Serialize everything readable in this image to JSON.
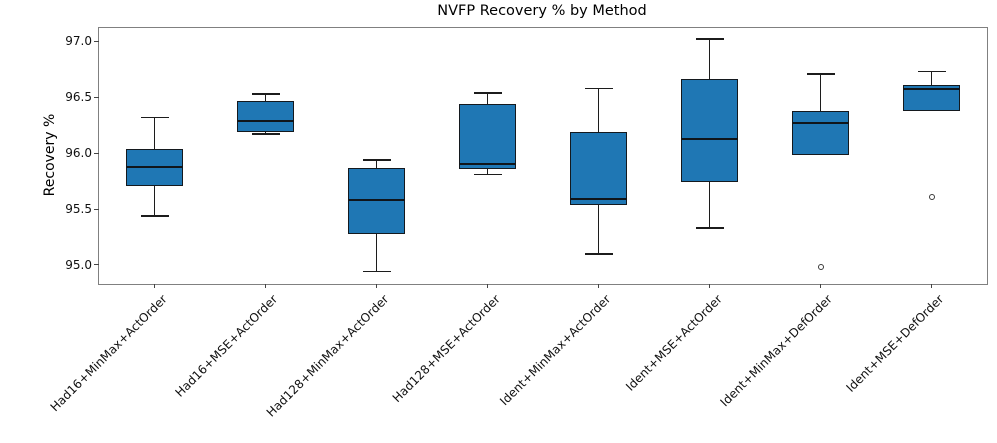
{
  "chart_data": {
    "type": "boxplot",
    "title": "NVFP Recovery % by Method",
    "xlabel": "",
    "ylabel": "Recovery %",
    "ylim": [
      94.83,
      97.12
    ],
    "yticks": [
      95.0,
      95.5,
      96.0,
      96.5,
      97.0
    ],
    "ytick_format_decimals": 1,
    "grid": false,
    "legend": "none",
    "colors": {
      "box_fill": "#1f77b4",
      "line": "#1c1c1c",
      "spine": "#808080"
    },
    "categories": [
      "Had16+MinMax+ActOrder",
      "Had16+MSE+ActOrder",
      "Had128+MinMax+ActOrder",
      "Had128+MSE+ActOrder",
      "Ident+MinMax+ActOrder",
      "Ident+MSE+ActOrder",
      "Ident+MinMax+DefOrder",
      "Ident+MSE+DefOrder"
    ],
    "boxes": [
      {
        "label": "Had16+MinMax+ActOrder",
        "whislo": 95.44,
        "q1": 95.71,
        "med": 95.88,
        "q3": 96.04,
        "whishi": 96.32,
        "fliers": []
      },
      {
        "label": "Had16+MSE+ActOrder",
        "whislo": 96.17,
        "q1": 96.19,
        "med": 96.29,
        "q3": 96.47,
        "whishi": 96.53,
        "fliers": []
      },
      {
        "label": "Had128+MinMax+ActOrder",
        "whislo": 94.94,
        "q1": 95.28,
        "med": 95.58,
        "q3": 95.87,
        "whishi": 95.94,
        "fliers": []
      },
      {
        "label": "Had128+MSE+ActOrder",
        "whislo": 95.81,
        "q1": 95.86,
        "med": 95.9,
        "q3": 96.44,
        "whishi": 96.54,
        "fliers": []
      },
      {
        "label": "Ident+MinMax+ActOrder",
        "whislo": 95.1,
        "q1": 95.54,
        "med": 95.59,
        "q3": 96.19,
        "whishi": 96.58,
        "fliers": []
      },
      {
        "label": "Ident+MSE+ActOrder",
        "whislo": 95.33,
        "q1": 95.74,
        "med": 96.13,
        "q3": 96.66,
        "whishi": 97.02,
        "fliers": []
      },
      {
        "label": "Ident+MinMax+DefOrder",
        "whislo": 95.98,
        "q1": 95.98,
        "med": 96.27,
        "q3": 96.38,
        "whishi": 96.71,
        "fliers": [
          94.98
        ]
      },
      {
        "label": "Ident+MSE+DefOrder",
        "whislo": 96.38,
        "q1": 96.38,
        "med": 96.57,
        "q3": 96.61,
        "whishi": 96.73,
        "fliers": [
          95.61
        ]
      }
    ]
  }
}
